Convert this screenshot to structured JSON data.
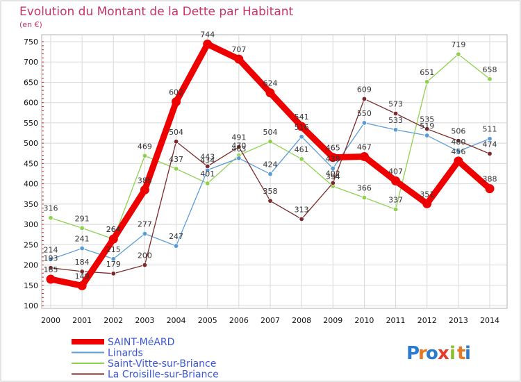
{
  "chart_data": {
    "type": "line",
    "title": "Evolution du Montant de la Dette par Habitant",
    "subtitle": "(en €)",
    "categories": [
      "2000",
      "2001",
      "2002",
      "2003",
      "2004",
      "2005",
      "2006",
      "2007",
      "2008",
      "2009",
      "2010",
      "2011",
      "2012",
      "2013",
      "2014"
    ],
    "ylim": [
      100,
      750
    ],
    "yticks": [
      100,
      150,
      200,
      250,
      300,
      350,
      400,
      450,
      500,
      550,
      600,
      650,
      700,
      750
    ],
    "grid": true,
    "legend_position": "bottom-left",
    "series": [
      {
        "name": "Saint-Vitte-sur-Briance",
        "color": "#8fd14f",
        "values": [
          316,
          291,
          264,
          469,
          437,
          401,
          470,
          504,
          461,
          394,
          366,
          337,
          651,
          719,
          658
        ]
      },
      {
        "name": "Linards",
        "color": "#5b9bd5",
        "values": [
          214,
          241,
          215,
          277,
          247,
          434,
          463,
          424,
          516,
          438,
          550,
          533,
          519,
          480,
          511
        ]
      },
      {
        "name": "La Croisille-sur-Briance",
        "color": "#7a2a2a",
        "values": [
          193,
          184,
          179,
          200,
          504,
          443,
          491,
          358,
          313,
          402,
          609,
          573,
          535,
          506,
          474
        ]
      },
      {
        "name": "SAINT-MéARD",
        "color": "#ee0000",
        "values": [
          165,
          149,
          264,
          385,
          602,
          744,
          707,
          624,
          541,
          465,
          467,
          407,
          351,
          456,
          388
        ]
      }
    ],
    "legend_order": [
      3,
      1,
      0,
      2
    ],
    "logo": {
      "text": "Proxiti",
      "letters": [
        "P",
        "r",
        "o",
        "x",
        "i",
        "t",
        "i"
      ],
      "colors": [
        "#2b7ccf",
        "#e87722",
        "#2b7ccf",
        "#e8392b",
        "#8fbf2f",
        "#e87722",
        "#2b7ccf"
      ]
    }
  }
}
